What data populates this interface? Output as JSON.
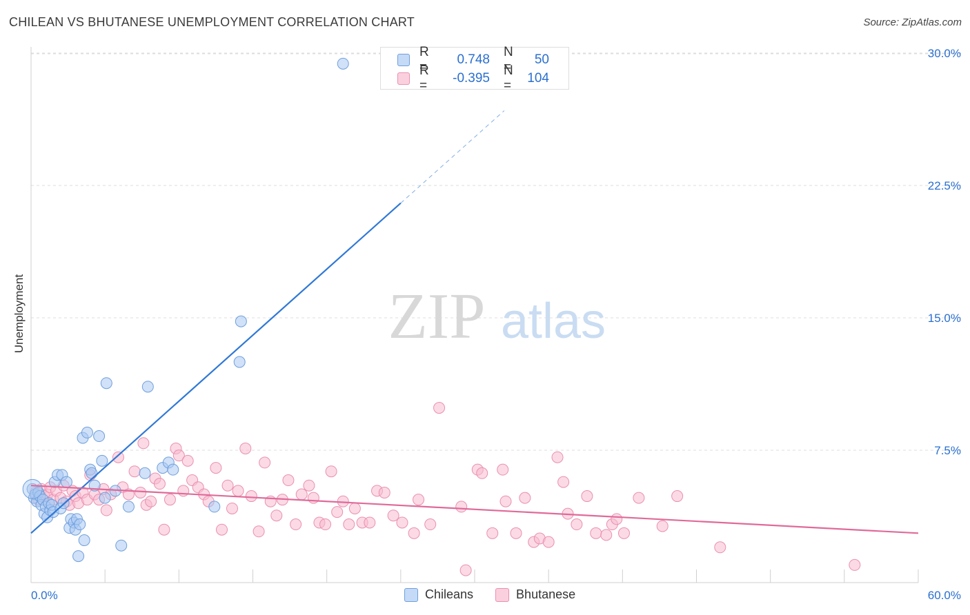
{
  "header": {
    "title": "CHILEAN VS BHUTANESE UNEMPLOYMENT CORRELATION CHART",
    "source": "Source: ZipAtlas.com"
  },
  "watermark": {
    "zip": "ZIP",
    "atlas": "atlas"
  },
  "colors": {
    "blue_fill": "#a9c9f2",
    "blue_stroke": "#6f9fdc",
    "blue_line": "#2f78d6",
    "pink_fill": "#f7bcd0",
    "pink_stroke": "#ea8fb0",
    "pink_line": "#e06a98",
    "value_text": "#2a6fcf"
  },
  "legend_top": [
    {
      "r_label": "R =",
      "r_value": "0.748",
      "n_label": "N =",
      "n_value": "50"
    },
    {
      "r_label": "R =",
      "r_value": "-0.395",
      "n_label": "N =",
      "n_value": "104"
    }
  ],
  "chart_data": {
    "type": "scatter",
    "title": "CHILEAN VS BHUTANESE UNEMPLOYMENT CORRELATION CHART",
    "xlabel": "",
    "ylabel": "Unemployment",
    "xlim": [
      0,
      60
    ],
    "ylim": [
      0,
      31
    ],
    "x_tick_labels": [
      "0.0%",
      "60.0%"
    ],
    "y_ticks": [
      7.5,
      15.0,
      22.5,
      30.0
    ],
    "y_tick_labels": [
      "7.5%",
      "15.0%",
      "22.5%",
      "30.0%"
    ],
    "grid": true,
    "legend_position": "bottom-center",
    "series": [
      {
        "name": "Chileans",
        "color": "blue",
        "trend": {
          "x0": 0,
          "y0": 2.8,
          "x1": 25,
          "y1": 21.5,
          "dash_to_x": 32
        },
        "points": [
          [
            0.1,
            5.3
          ],
          [
            0.2,
            4.8
          ],
          [
            0.3,
            5.0
          ],
          [
            0.4,
            4.6
          ],
          [
            0.5,
            5.1
          ],
          [
            0.6,
            4.9
          ],
          [
            0.7,
            4.4
          ],
          [
            0.8,
            4.7
          ],
          [
            0.9,
            3.9
          ],
          [
            1.0,
            4.3
          ],
          [
            1.1,
            3.7
          ],
          [
            1.2,
            4.5
          ],
          [
            1.3,
            4.1
          ],
          [
            1.4,
            4.4
          ],
          [
            1.5,
            4.0
          ],
          [
            1.6,
            5.7
          ],
          [
            1.8,
            6.1
          ],
          [
            2.0,
            4.2
          ],
          [
            2.1,
            6.1
          ],
          [
            2.2,
            4.5
          ],
          [
            2.4,
            5.7
          ],
          [
            2.6,
            3.1
          ],
          [
            2.7,
            3.6
          ],
          [
            2.9,
            3.4
          ],
          [
            3.0,
            3.0
          ],
          [
            3.1,
            3.6
          ],
          [
            3.2,
            1.5
          ],
          [
            3.3,
            3.3
          ],
          [
            3.5,
            8.2
          ],
          [
            3.6,
            2.4
          ],
          [
            3.8,
            8.5
          ],
          [
            4.0,
            6.4
          ],
          [
            4.1,
            6.2
          ],
          [
            4.3,
            5.5
          ],
          [
            4.6,
            8.3
          ],
          [
            4.8,
            6.9
          ],
          [
            5.0,
            4.8
          ],
          [
            5.1,
            11.3
          ],
          [
            5.7,
            5.2
          ],
          [
            6.1,
            2.1
          ],
          [
            6.6,
            4.3
          ],
          [
            7.7,
            6.2
          ],
          [
            7.9,
            11.1
          ],
          [
            8.9,
            6.5
          ],
          [
            9.3,
            6.8
          ],
          [
            9.6,
            6.4
          ],
          [
            12.4,
            4.3
          ],
          [
            14.1,
            12.5
          ],
          [
            14.2,
            14.8
          ],
          [
            21.1,
            29.4
          ]
        ]
      },
      {
        "name": "Bhutanese",
        "color": "pink",
        "trend": {
          "x0": 0,
          "y0": 5.5,
          "x1": 60,
          "y1": 2.8
        },
        "points": [
          [
            0.3,
            5.1
          ],
          [
            0.5,
            4.7
          ],
          [
            0.7,
            5.3
          ],
          [
            0.9,
            4.9
          ],
          [
            1.1,
            5.0
          ],
          [
            1.3,
            5.4
          ],
          [
            1.5,
            4.7
          ],
          [
            1.7,
            5.2
          ],
          [
            2.0,
            4.8
          ],
          [
            2.2,
            5.5
          ],
          [
            2.4,
            4.6
          ],
          [
            2.6,
            4.4
          ],
          [
            2.8,
            5.2
          ],
          [
            3.0,
            4.9
          ],
          [
            3.2,
            4.5
          ],
          [
            3.5,
            5.1
          ],
          [
            3.8,
            4.7
          ],
          [
            4.0,
            6.1
          ],
          [
            4.3,
            5.0
          ],
          [
            4.6,
            4.7
          ],
          [
            4.9,
            5.3
          ],
          [
            5.1,
            4.1
          ],
          [
            5.4,
            5.0
          ],
          [
            5.9,
            7.1
          ],
          [
            6.2,
            5.4
          ],
          [
            6.6,
            5.0
          ],
          [
            7.0,
            6.3
          ],
          [
            7.4,
            5.1
          ],
          [
            7.6,
            7.9
          ],
          [
            7.8,
            4.4
          ],
          [
            8.1,
            4.6
          ],
          [
            8.4,
            5.9
          ],
          [
            8.7,
            5.6
          ],
          [
            9.0,
            3.0
          ],
          [
            9.4,
            4.7
          ],
          [
            9.8,
            7.6
          ],
          [
            10.0,
            7.2
          ],
          [
            10.3,
            5.2
          ],
          [
            10.6,
            6.9
          ],
          [
            10.9,
            5.8
          ],
          [
            11.3,
            5.4
          ],
          [
            11.7,
            5.0
          ],
          [
            12.0,
            4.6
          ],
          [
            12.5,
            6.5
          ],
          [
            12.9,
            3.0
          ],
          [
            13.3,
            5.5
          ],
          [
            13.6,
            4.2
          ],
          [
            14.0,
            5.2
          ],
          [
            14.5,
            7.6
          ],
          [
            14.9,
            4.9
          ],
          [
            15.4,
            2.9
          ],
          [
            15.8,
            6.8
          ],
          [
            16.2,
            4.6
          ],
          [
            16.6,
            3.8
          ],
          [
            17.0,
            4.7
          ],
          [
            17.4,
            5.8
          ],
          [
            17.9,
            3.3
          ],
          [
            18.3,
            5.0
          ],
          [
            18.8,
            5.5
          ],
          [
            19.1,
            4.8
          ],
          [
            19.5,
            3.4
          ],
          [
            19.9,
            3.3
          ],
          [
            20.3,
            6.3
          ],
          [
            20.7,
            4.0
          ],
          [
            21.1,
            4.6
          ],
          [
            21.5,
            3.3
          ],
          [
            21.9,
            4.2
          ],
          [
            22.4,
            3.4
          ],
          [
            22.9,
            3.4
          ],
          [
            23.4,
            5.2
          ],
          [
            23.9,
            5.1
          ],
          [
            24.5,
            3.8
          ],
          [
            25.1,
            3.4
          ],
          [
            25.9,
            2.8
          ],
          [
            26.2,
            4.7
          ],
          [
            27.0,
            3.3
          ],
          [
            27.6,
            9.9
          ],
          [
            29.1,
            4.3
          ],
          [
            29.4,
            0.7
          ],
          [
            30.2,
            6.4
          ],
          [
            30.5,
            6.2
          ],
          [
            31.2,
            2.8
          ],
          [
            31.9,
            6.4
          ],
          [
            32.1,
            4.6
          ],
          [
            32.8,
            2.8
          ],
          [
            33.4,
            4.8
          ],
          [
            34.0,
            2.3
          ],
          [
            34.4,
            2.5
          ],
          [
            35.0,
            2.3
          ],
          [
            35.6,
            7.1
          ],
          [
            36.0,
            5.7
          ],
          [
            36.3,
            3.9
          ],
          [
            36.9,
            3.3
          ],
          [
            37.6,
            4.9
          ],
          [
            38.2,
            2.8
          ],
          [
            38.9,
            2.7
          ],
          [
            39.3,
            3.3
          ],
          [
            39.6,
            3.6
          ],
          [
            40.1,
            2.8
          ],
          [
            41.1,
            4.8
          ],
          [
            42.7,
            3.2
          ],
          [
            43.7,
            4.9
          ],
          [
            46.6,
            2.0
          ],
          [
            55.7,
            1.0
          ]
        ]
      }
    ]
  }
}
